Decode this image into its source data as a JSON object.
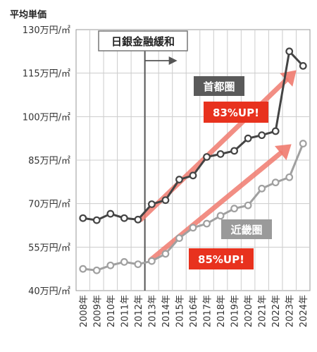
{
  "chart_data": {
    "type": "line",
    "y_title": "平均単価",
    "y_ticks": [
      "130万円/㎡",
      "115万円/㎡",
      "100万円/㎡",
      "85万円/㎡",
      "70万円/㎡",
      "55万円/㎡",
      "40万円/㎡"
    ],
    "y_tick_values": [
      130,
      115,
      100,
      85,
      70,
      55,
      40
    ],
    "ylim": [
      40,
      130
    ],
    "categories": [
      "2008年",
      "2009年",
      "2010年",
      "2011年",
      "2012年",
      "2013年",
      "2014年",
      "2015年",
      "2016年",
      "2017年",
      "2018年",
      "2019年",
      "2020年",
      "2021年",
      "2022年",
      "2023年",
      "2024年"
    ],
    "grid": true,
    "series": [
      {
        "name": "首都圏",
        "color": "#444444",
        "label_bg": "#5a5a5a",
        "values": [
          65,
          64.3,
          66.5,
          65,
          64.5,
          69.8,
          71.2,
          78.3,
          79.7,
          86.1,
          87.1,
          88.2,
          92.5,
          93.6,
          95,
          122.5,
          117.5
        ]
      },
      {
        "name": "近畿圏",
        "color": "#a0a0a0",
        "label_bg": "#9a9a9a",
        "values": [
          47.5,
          47,
          48.7,
          49.9,
          49.1,
          50.2,
          52.7,
          58.1,
          61.7,
          63.1,
          65.8,
          68.3,
          69.4,
          75.2,
          77.3,
          79.1,
          90.7
        ]
      }
    ],
    "annotations": {
      "boj_label": "日銀金融緩和",
      "boj_after_category": "2012年",
      "arrow_color": "#f07a6e",
      "tag_color": "#e8321e",
      "shuto_up": "83%UP!",
      "kinki_up": "85%UP!"
    }
  }
}
